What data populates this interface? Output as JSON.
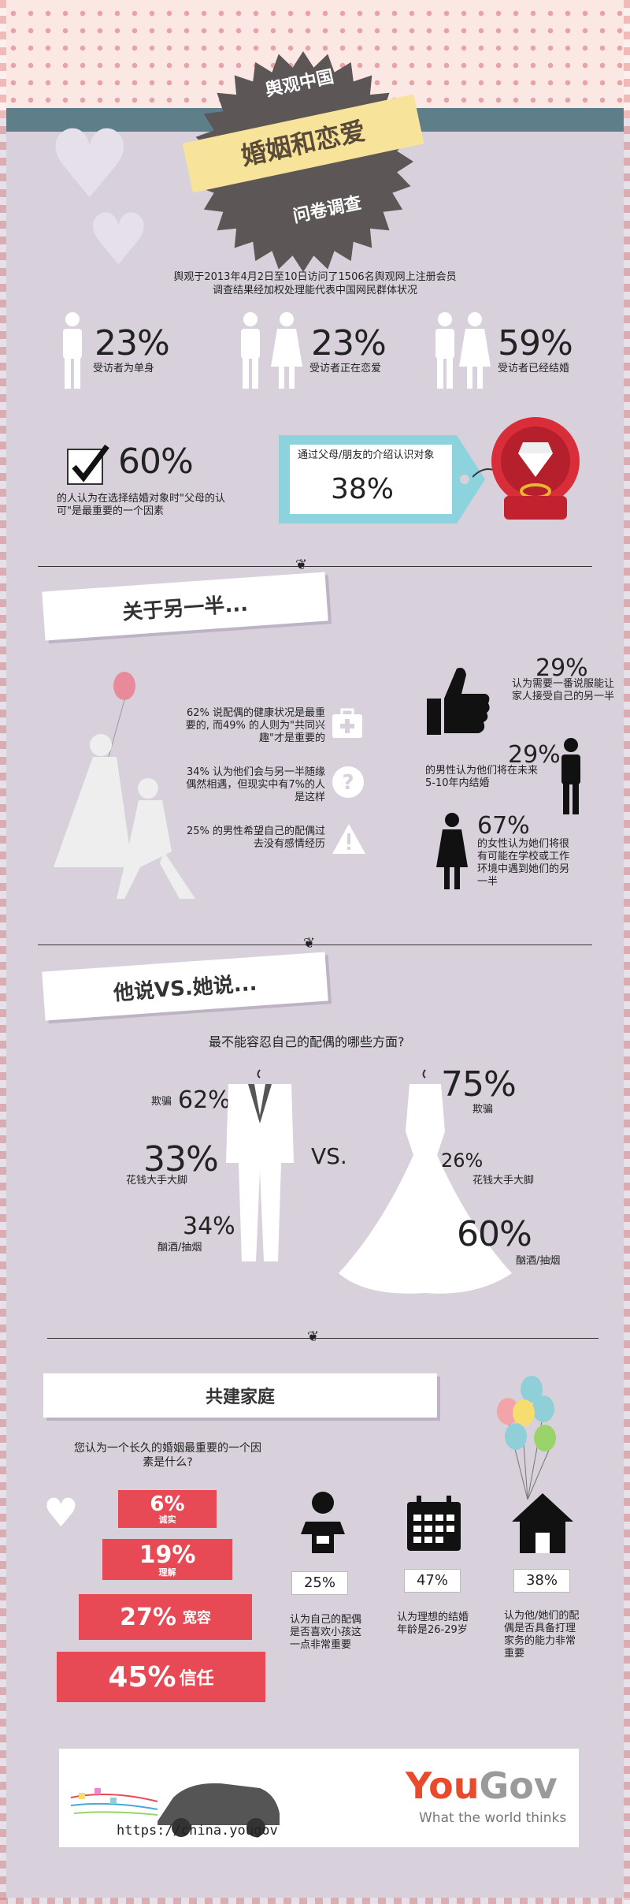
{
  "header": {
    "title_top": "舆观中国",
    "title_main": "婚姻和恋爱",
    "title_bottom": "问卷调查"
  },
  "intro": {
    "line1": "舆观于2013年4月2日至10日访问了1506名舆观网上注册会员",
    "line2": "调查结果经加权处理能代表中国网民群体状况"
  },
  "status": [
    {
      "pct": "23%",
      "label": "受访者为单身"
    },
    {
      "pct": "23%",
      "label": "受访者正在恋爱"
    },
    {
      "pct": "59%",
      "label": "受访者已经结婚"
    }
  ],
  "parents": {
    "pct": "60%",
    "label": "的人认为在选择结婚对象时\"父母的认可\"是最重要的一个因素"
  },
  "tag": {
    "text": "通过父母/朋友的介绍认识对象",
    "pct": "38%"
  },
  "section1": {
    "title": "关于另一半...",
    "left": [
      {
        "text": "62% 说配偶的健康状况是最重要的, 而49% 的人则为\"共同兴趣\"才是重要的",
        "icon": "first-aid-icon"
      },
      {
        "text": "34% 认为他们会与另一半随缘偶然相遇，但现实中有7%的人是这样",
        "icon": "question-icon"
      },
      {
        "text": "25% 的男性希望自己的配偶过去没有感情经历",
        "icon": "warning-icon"
      }
    ],
    "right": [
      {
        "pct": "29%",
        "text": "认为需要一番说服能让家人接受自己的另一半"
      },
      {
        "pct": "29%",
        "text": "的男性认为他们将在未来5-10年内结婚"
      },
      {
        "pct": "67%",
        "text": "的女性认为她们将很有可能在学校或工作环境中遇到她们的另一半"
      }
    ]
  },
  "section2": {
    "title": "他说VS.她说...",
    "question": "最不能容忍自己的配偶的哪些方面?",
    "vs": "VS.",
    "he": [
      {
        "pct": "62%",
        "label": "欺骗"
      },
      {
        "pct": "33%",
        "label": "花钱大手大脚"
      },
      {
        "pct": "34%",
        "label": "酗酒/抽烟"
      }
    ],
    "she": [
      {
        "pct": "75%",
        "label": "欺骗"
      },
      {
        "pct": "26%",
        "label": "花钱大手大脚"
      },
      {
        "pct": "60%",
        "label": "酗酒/抽烟"
      }
    ]
  },
  "section3": {
    "title": "共建家庭",
    "question": "您认为一个长久的婚姻最重要的一个因素是什么?",
    "cake": [
      {
        "pct": "6%",
        "label": "诚实"
      },
      {
        "pct": "19%",
        "label": "理解"
      },
      {
        "pct": "27%",
        "label": "宽容"
      },
      {
        "pct": "45%",
        "label": "信任"
      }
    ],
    "icons": [
      {
        "pct": "25%",
        "text": "认为自己的配偶是否喜欢小孩这一点非常重要",
        "icon": "baby-icon"
      },
      {
        "pct": "47%",
        "text": "认为理想的结婚年龄是26-29岁",
        "icon": "calendar-icon"
      },
      {
        "pct": "38%",
        "text": "认为他/她们的配偶是否具备打理家务的能力非常重要",
        "icon": "house-icon"
      }
    ]
  },
  "footer": {
    "url": "https://china.yougov",
    "brand_you": "You",
    "brand_gov": "Gov",
    "tagline": "What the world thinks"
  }
}
